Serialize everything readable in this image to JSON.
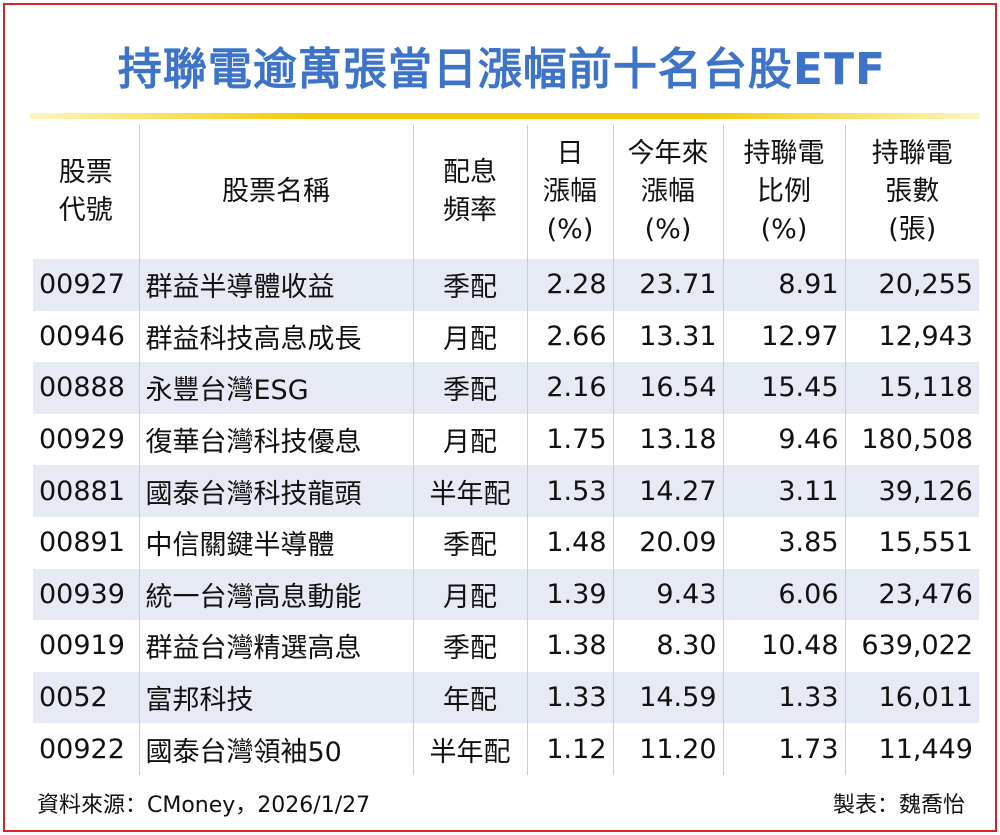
{
  "header": {
    "title": "持聯電逾萬張當日漲幅前十名台股ETF"
  },
  "table": {
    "columns": [
      [
        "股票",
        "代號"
      ],
      [
        "股票名稱"
      ],
      [
        "配息",
        "頻率"
      ],
      [
        "日",
        "漲幅",
        "(%)"
      ],
      [
        "今年來",
        "漲幅",
        "(%)"
      ],
      [
        "持聯電",
        "比例",
        "(%)"
      ],
      [
        "持聯電",
        "張數",
        "(張)"
      ]
    ],
    "rows": [
      [
        "00927",
        "群益半導體收益",
        "季配",
        "2.28",
        "23.71",
        "8.91",
        "20,255"
      ],
      [
        "00946",
        "群益科技高息成長",
        "月配",
        "2.66",
        "13.31",
        "12.97",
        "12,943"
      ],
      [
        "00888",
        "永豐台灣ESG",
        "季配",
        "2.16",
        "16.54",
        "15.45",
        "15,118"
      ],
      [
        "00929",
        "復華台灣科技優息",
        "月配",
        "1.75",
        "13.18",
        "9.46",
        "180,508"
      ],
      [
        "00881",
        "國泰台灣科技龍頭",
        "半年配",
        "1.53",
        "14.27",
        "3.11",
        "39,126"
      ],
      [
        "00891",
        "中信關鍵半導體",
        "季配",
        "1.48",
        "20.09",
        "3.85",
        "15,551"
      ],
      [
        "00939",
        "統一台灣高息動能",
        "月配",
        "1.39",
        "9.43",
        "6.06",
        "23,476"
      ],
      [
        "00919",
        "群益台灣精選高息",
        "季配",
        "1.38",
        "8.30",
        "10.48",
        "639,022"
      ],
      [
        "0052",
        "富邦科技",
        "年配",
        "1.33",
        "14.59",
        "1.33",
        "16,011"
      ],
      [
        "00922",
        "國泰台灣領袖50",
        "半年配",
        "1.12",
        "11.20",
        "1.73",
        "11,449"
      ]
    ]
  },
  "footer": {
    "source": "資料來源：CMoney，2026/1/27",
    "author": "製表：魏喬怡"
  }
}
